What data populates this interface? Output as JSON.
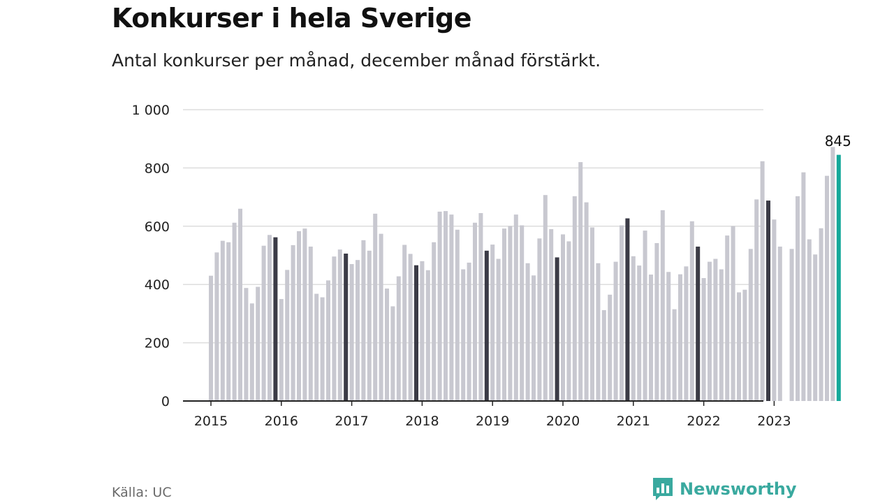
{
  "title": "Konkurser i hela Sverige",
  "subtitle": "Antal konkurser per månad, december månad förstärkt.",
  "source": "Källa: UC",
  "brand": {
    "name": "Newsworthy",
    "icon": "newsworthy-logo-icon",
    "color": "#3aa99f"
  },
  "colors": {
    "normal": "#c8c8d0",
    "december": "#3b3b46",
    "latest": "#14a89a",
    "axis": "#222222",
    "grid": "#dddddd"
  },
  "chart_data": {
    "type": "bar",
    "title": "Konkurser i hela Sverige",
    "subtitle": "Antal konkurser per månad, december månad förstärkt.",
    "xlabel": "",
    "ylabel": "",
    "ylim": [
      0,
      1000
    ],
    "y_ticks": [
      0,
      200,
      400,
      600,
      800,
      1000
    ],
    "y_tick_labels": [
      "0",
      "200",
      "400",
      "600",
      "800",
      "1 000"
    ],
    "x_tick_labels": [
      "2015",
      "2016",
      "2017",
      "2018",
      "2019",
      "2020",
      "2021",
      "2022",
      "2023"
    ],
    "grid": true,
    "start": "2015-01",
    "highlight": "december",
    "annotation": {
      "label": "845",
      "month": "2023-12"
    },
    "values": [
      430,
      510,
      550,
      545,
      612,
      660,
      388,
      335,
      392,
      533,
      570,
      562,
      350,
      450,
      535,
      583,
      592,
      530,
      368,
      356,
      414,
      496,
      520,
      506,
      470,
      484,
      552,
      516,
      643,
      574,
      386,
      325,
      428,
      536,
      505,
      466,
      480,
      449,
      545,
      650,
      652,
      640,
      588,
      452,
      475,
      612,
      645,
      516,
      537,
      488,
      592,
      600,
      640,
      603,
      473,
      431,
      558,
      707,
      590,
      493,
      572,
      548,
      703,
      820,
      682,
      596,
      473,
      312,
      365,
      478,
      603,
      627,
      497,
      465,
      585,
      434,
      542,
      655,
      443,
      315,
      435,
      462,
      617,
      530,
      422,
      478,
      488,
      452,
      568,
      600,
      373,
      382,
      522,
      692,
      823,
      688,
      623,
      530,
      0,
      522,
      703,
      785,
      555,
      503,
      593,
      773,
      872,
      845
    ]
  }
}
